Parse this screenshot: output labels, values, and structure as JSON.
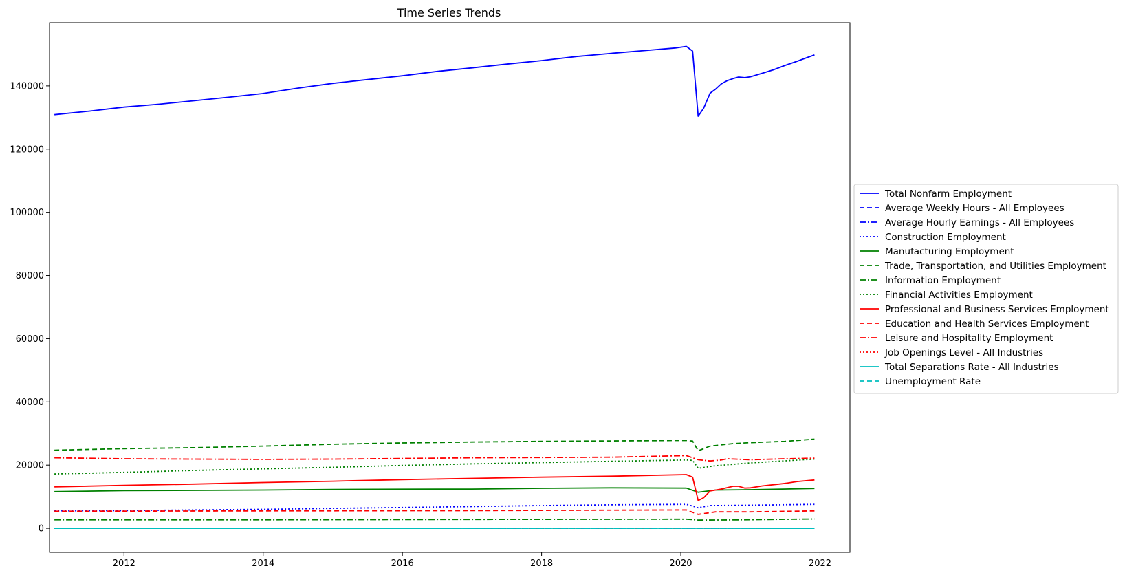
{
  "chart_data": {
    "type": "line",
    "title": "Time Series Trends",
    "xlabel": "",
    "ylabel": "",
    "xlim": [
      2010.93,
      2022.43
    ],
    "ylim": [
      -7600,
      160000
    ],
    "x_ticks": [
      2012,
      2014,
      2016,
      2018,
      2020,
      2022
    ],
    "x_tick_labels": [
      "2012",
      "2014",
      "2016",
      "2018",
      "2020",
      "2022"
    ],
    "y_ticks": [
      0,
      20000,
      40000,
      60000,
      80000,
      100000,
      120000,
      140000
    ],
    "y_tick_labels": [
      "0",
      "20000",
      "40000",
      "60000",
      "80000",
      "100000",
      "120000",
      "140000"
    ],
    "grid": false,
    "legend_position": "center-right-outside",
    "series": [
      {
        "name": "Total Nonfarm Employment",
        "color": "#0000ff",
        "dash": "solid",
        "points": [
          [
            2011.0,
            130900
          ],
          [
            2011.5,
            132000
          ],
          [
            2012.0,
            133300
          ],
          [
            2012.5,
            134200
          ],
          [
            2013.0,
            135300
          ],
          [
            2013.5,
            136400
          ],
          [
            2014.0,
            137600
          ],
          [
            2014.5,
            139300
          ],
          [
            2015.0,
            140800
          ],
          [
            2015.5,
            142000
          ],
          [
            2016.0,
            143200
          ],
          [
            2016.5,
            144600
          ],
          [
            2017.0,
            145700
          ],
          [
            2017.5,
            146900
          ],
          [
            2018.0,
            148000
          ],
          [
            2018.5,
            149300
          ],
          [
            2019.0,
            150300
          ],
          [
            2019.5,
            151200
          ],
          [
            2019.92,
            152000
          ],
          [
            2020.08,
            152500
          ],
          [
            2020.17,
            151000
          ],
          [
            2020.25,
            130400
          ],
          [
            2020.33,
            133000
          ],
          [
            2020.42,
            137700
          ],
          [
            2020.5,
            139000
          ],
          [
            2020.58,
            140600
          ],
          [
            2020.67,
            141700
          ],
          [
            2020.75,
            142300
          ],
          [
            2020.83,
            142800
          ],
          [
            2020.92,
            142600
          ],
          [
            2021.0,
            142900
          ],
          [
            2021.17,
            144000
          ],
          [
            2021.33,
            145100
          ],
          [
            2021.5,
            146500
          ],
          [
            2021.67,
            147800
          ],
          [
            2021.83,
            149100
          ],
          [
            2021.92,
            149800
          ]
        ]
      },
      {
        "name": "Average Weekly Hours - All Employees",
        "color": "#0000ff",
        "dash": "dashed",
        "points": [
          [
            2011.0,
            34.3
          ],
          [
            2016.0,
            34.4
          ],
          [
            2020.0,
            34.3
          ],
          [
            2020.33,
            34.7
          ],
          [
            2021.92,
            34.7
          ]
        ]
      },
      {
        "name": "Average Hourly Earnings - All Employees",
        "color": "#0000ff",
        "dash": "dashdot",
        "points": [
          [
            2011.0,
            23
          ],
          [
            2016.0,
            25.5
          ],
          [
            2020.0,
            28.5
          ],
          [
            2020.33,
            30
          ],
          [
            2021.92,
            31.3
          ]
        ]
      },
      {
        "name": "Construction Employment",
        "color": "#0000ff",
        "dash": "dotted",
        "points": [
          [
            2011.0,
            5500
          ],
          [
            2012.0,
            5600
          ],
          [
            2013.0,
            5800
          ],
          [
            2014.0,
            6000
          ],
          [
            2015.0,
            6300
          ],
          [
            2016.0,
            6600
          ],
          [
            2017.0,
            6900
          ],
          [
            2018.0,
            7200
          ],
          [
            2019.0,
            7450
          ],
          [
            2020.08,
            7600
          ],
          [
            2020.25,
            6500
          ],
          [
            2020.42,
            7200
          ],
          [
            2021.0,
            7300
          ],
          [
            2021.92,
            7600
          ]
        ]
      },
      {
        "name": "Manufacturing Employment",
        "color": "#008000",
        "dash": "solid",
        "points": [
          [
            2011.0,
            11600
          ],
          [
            2012.0,
            11900
          ],
          [
            2013.0,
            12000
          ],
          [
            2014.0,
            12100
          ],
          [
            2015.0,
            12300
          ],
          [
            2016.0,
            12350
          ],
          [
            2017.0,
            12400
          ],
          [
            2018.0,
            12650
          ],
          [
            2019.0,
            12800
          ],
          [
            2020.08,
            12700
          ],
          [
            2020.25,
            11400
          ],
          [
            2020.5,
            12100
          ],
          [
            2021.0,
            12200
          ],
          [
            2021.92,
            12600
          ]
        ]
      },
      {
        "name": "Trade, Transportation, and Utilities Employment",
        "color": "#008000",
        "dash": "dashed",
        "points": [
          [
            2011.0,
            24700
          ],
          [
            2012.0,
            25200
          ],
          [
            2013.0,
            25500
          ],
          [
            2014.0,
            26000
          ],
          [
            2015.0,
            26600
          ],
          [
            2016.0,
            27000
          ],
          [
            2017.0,
            27300
          ],
          [
            2018.0,
            27500
          ],
          [
            2019.0,
            27650
          ],
          [
            2020.08,
            27800
          ],
          [
            2020.17,
            27600
          ],
          [
            2020.25,
            24500
          ],
          [
            2020.42,
            26000
          ],
          [
            2020.75,
            26800
          ],
          [
            2021.0,
            27100
          ],
          [
            2021.5,
            27500
          ],
          [
            2021.92,
            28200
          ]
        ]
      },
      {
        "name": "Information Employment",
        "color": "#008000",
        "dash": "dashdot",
        "points": [
          [
            2011.0,
            2700
          ],
          [
            2014.0,
            2700
          ],
          [
            2017.0,
            2800
          ],
          [
            2020.08,
            2900
          ],
          [
            2020.25,
            2600
          ],
          [
            2020.75,
            2650
          ],
          [
            2021.92,
            2950
          ]
        ]
      },
      {
        "name": "Financial Activities Employment",
        "color": "#008000",
        "dash": "dotted",
        "points": [
          [
            2011.0,
            17200
          ],
          [
            2012.0,
            17700
          ],
          [
            2013.0,
            18300
          ],
          [
            2014.0,
            18800
          ],
          [
            2015.0,
            19300
          ],
          [
            2016.0,
            19900
          ],
          [
            2017.0,
            20400
          ],
          [
            2018.0,
            20800
          ],
          [
            2019.0,
            21200
          ],
          [
            2020.08,
            21600
          ],
          [
            2020.17,
            21500
          ],
          [
            2020.25,
            19000
          ],
          [
            2020.5,
            19800
          ],
          [
            2021.0,
            20700
          ],
          [
            2021.92,
            21900
          ]
        ]
      },
      {
        "name": "Professional and Business Services Employment",
        "color": "#ff0000",
        "dash": "solid",
        "points": [
          [
            2011.0,
            13100
          ],
          [
            2012.0,
            13600
          ],
          [
            2013.0,
            14000
          ],
          [
            2014.0,
            14500
          ],
          [
            2015.0,
            14900
          ],
          [
            2016.0,
            15400
          ],
          [
            2017.0,
            15800
          ],
          [
            2018.0,
            16200
          ],
          [
            2019.0,
            16500
          ],
          [
            2020.08,
            17000
          ],
          [
            2020.17,
            16200
          ],
          [
            2020.25,
            8800
          ],
          [
            2020.33,
            9700
          ],
          [
            2020.42,
            11800
          ],
          [
            2020.58,
            12400
          ],
          [
            2020.75,
            13300
          ],
          [
            2020.83,
            13300
          ],
          [
            2020.92,
            12700
          ],
          [
            2021.0,
            12800
          ],
          [
            2021.17,
            13400
          ],
          [
            2021.5,
            14200
          ],
          [
            2021.67,
            14800
          ],
          [
            2021.92,
            15300
          ]
        ]
      },
      {
        "name": "Education and Health Services Employment",
        "color": "#ff0000",
        "dash": "dashed",
        "points": [
          [
            2011.0,
            5400
          ],
          [
            2014.0,
            5500
          ],
          [
            2017.0,
            5600
          ],
          [
            2020.08,
            5800
          ],
          [
            2020.25,
            4400
          ],
          [
            2020.5,
            5200
          ],
          [
            2021.0,
            5200
          ],
          [
            2021.92,
            5500
          ]
        ]
      },
      {
        "name": "Leisure and Hospitality Employment",
        "color": "#ff0000",
        "dash": "dashdot",
        "points": [
          [
            2011.0,
            22300
          ],
          [
            2012.0,
            22000
          ],
          [
            2013.0,
            21900
          ],
          [
            2014.0,
            21800
          ],
          [
            2015.0,
            21900
          ],
          [
            2016.0,
            22100
          ],
          [
            2017.0,
            22300
          ],
          [
            2018.0,
            22400
          ],
          [
            2019.0,
            22500
          ],
          [
            2020.08,
            23000
          ],
          [
            2020.25,
            21700
          ],
          [
            2020.42,
            21300
          ],
          [
            2020.58,
            21600
          ],
          [
            2020.67,
            22000
          ],
          [
            2021.0,
            21700
          ],
          [
            2021.5,
            22000
          ],
          [
            2021.92,
            22200
          ]
        ]
      },
      {
        "name": "Job Openings Level - All Industries",
        "color": "#ff0000",
        "dash": "dotted",
        "points": [
          [
            2011.0,
            3.2
          ],
          [
            2021.92,
            3.0
          ]
        ]
      },
      {
        "name": "Total Separations Rate - All Industries",
        "color": "#00bfbf",
        "dash": "solid",
        "points": [
          [
            2011.0,
            3.3
          ],
          [
            2020.25,
            8.0
          ],
          [
            2021.92,
            4.0
          ]
        ]
      },
      {
        "name": "Unemployment Rate",
        "color": "#00bfbf",
        "dash": "dashed",
        "points": [
          [
            2011.0,
            9.1
          ],
          [
            2015.0,
            5.6
          ],
          [
            2019.0,
            3.6
          ],
          [
            2020.33,
            14.8
          ],
          [
            2021.92,
            4.0
          ]
        ]
      }
    ]
  }
}
